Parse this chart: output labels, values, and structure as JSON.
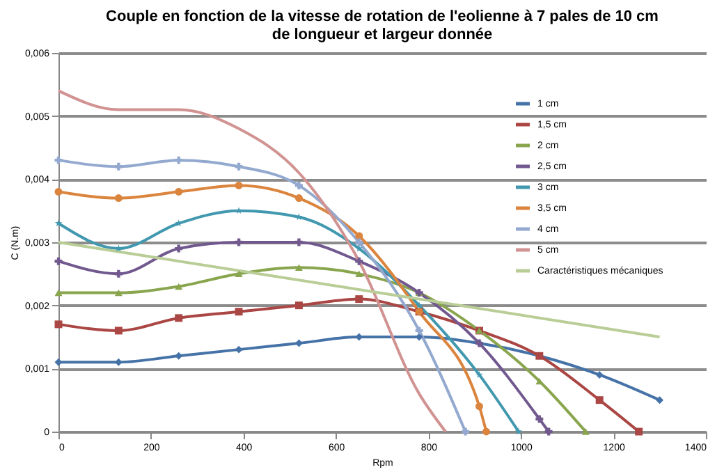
{
  "chart_data": {
    "type": "line",
    "title": "Couple en fonction de la vitesse de rotation de l'eolienne à 7 pales de 10 cm\nde longueur et largeur donnée",
    "xlabel": "Rpm",
    "ylabel": "C (N.m)",
    "xlim": [
      0,
      1400
    ],
    "xticks": [
      0,
      200,
      400,
      600,
      800,
      1000,
      1200,
      1400
    ],
    "ylim": [
      0,
      0.006
    ],
    "yticks": [
      0,
      {
        "value": 0.001,
        "label": "0,001"
      },
      {
        "value": 0.002,
        "label": "0,002"
      },
      {
        "value": 0.003,
        "label": "0,003"
      },
      {
        "value": 0.004,
        "label": "0,004"
      },
      {
        "value": 0.005,
        "label": "0,005"
      },
      {
        "value": 0.006,
        "label": "0,006"
      }
    ],
    "grid": "y",
    "legend": "top right",
    "line_style": "solid",
    "series": [
      {
        "name": "1 cm",
        "color": "#4572a7",
        "marker": "diamond",
        "x": [
          0,
          130,
          260,
          390,
          520,
          650,
          780,
          910,
          1040,
          1170,
          1300
        ],
        "values": [
          0.0011,
          0.0011,
          0.0012,
          0.0013,
          0.0014,
          0.0015,
          0.0015,
          0.0014,
          0.0012,
          0.0009,
          0.0005
        ]
      },
      {
        "name": "1,5 cm",
        "color": "#aa4643",
        "marker": "square",
        "x": [
          0,
          130,
          260,
          390,
          520,
          650,
          780,
          910,
          1040,
          1170,
          1255
        ],
        "values": [
          0.0017,
          0.0016,
          0.0018,
          0.0019,
          0.002,
          0.0021,
          0.0019,
          0.0016,
          0.0012,
          0.0005,
          0
        ]
      },
      {
        "name": "2 cm",
        "color": "#89a54e",
        "marker": "triangle",
        "x": [
          0,
          130,
          260,
          390,
          520,
          650,
          780,
          910,
          1040,
          1140
        ],
        "values": [
          0.0022,
          0.0022,
          0.0023,
          0.0025,
          0.0026,
          0.0025,
          0.0022,
          0.0016,
          0.0008,
          0
        ]
      },
      {
        "name": "2,5 cm",
        "color": "#71588f",
        "marker": "cross",
        "x": [
          0,
          130,
          260,
          390,
          520,
          650,
          780,
          910,
          1040,
          1060
        ],
        "values": [
          0.0027,
          0.0025,
          0.0029,
          0.003,
          0.003,
          0.0027,
          0.0022,
          0.0014,
          0.0002,
          0
        ]
      },
      {
        "name": "3 cm",
        "color": "#4198af",
        "marker": "star",
        "x": [
          0,
          130,
          260,
          390,
          520,
          650,
          780,
          910,
          995
        ],
        "values": [
          0.0033,
          0.0029,
          0.0033,
          0.0035,
          0.0034,
          0.0029,
          0.002,
          0.0009,
          0
        ]
      },
      {
        "name": "3,5 cm",
        "color": "#db843d",
        "marker": "circle",
        "x": [
          0,
          130,
          260,
          390,
          520,
          650,
          780,
          910,
          925
        ],
        "values": [
          0.0038,
          0.0037,
          0.0038,
          0.0039,
          0.0037,
          0.0031,
          0.0019,
          0.0004,
          0
        ]
      },
      {
        "name": "4 cm",
        "color": "#93a9cf",
        "marker": "cross",
        "x": [
          0,
          130,
          260,
          390,
          520,
          650,
          780,
          880
        ],
        "values": [
          0.0043,
          0.0042,
          0.0043,
          0.0042,
          0.0039,
          0.003,
          0.0016,
          0
        ]
      },
      {
        "name": "5 cm",
        "color": "#d19392",
        "marker": "none",
        "x": [
          0,
          130,
          260,
          390,
          520,
          650,
          780,
          837
        ],
        "values": [
          0.0054,
          0.0051,
          0.0051,
          0.0048,
          0.0041,
          0.0027,
          0.0006,
          0
        ]
      },
      {
        "name": "Caractéristiques mécaniques",
        "color": "#b9cd96",
        "marker": "none",
        "x": [
          0,
          1300
        ],
        "values": [
          0.003,
          0.0015
        ]
      }
    ]
  }
}
